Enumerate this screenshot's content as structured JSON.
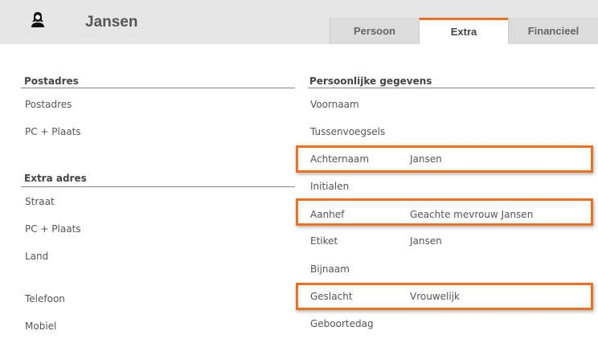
{
  "header": {
    "title": "Jansen",
    "icon": "person-icon"
  },
  "tabs": [
    {
      "label": "Persoon"
    },
    {
      "label": "Extra",
      "active": true
    },
    {
      "label": "Financieel"
    }
  ],
  "left": {
    "postadres": {
      "heading": "Postadres",
      "rows": [
        "Postadres",
        "PC + Plaats"
      ]
    },
    "extra": {
      "heading": "Extra adres",
      "rows": [
        "Straat",
        "PC + Plaats",
        "Land"
      ]
    },
    "contact": [
      "Telefoon",
      "Mobiel"
    ]
  },
  "right": {
    "heading": "Persoonlijke gegevens",
    "rows": [
      {
        "label": "Voornaam",
        "value": ""
      },
      {
        "label": "Tussenvoegsels",
        "value": ""
      },
      {
        "label": "Achternaam",
        "value": "Jansen",
        "highlighted": true
      },
      {
        "label": "Initialen",
        "value": ""
      },
      {
        "label": "Aanhef",
        "value": "Geachte mevrouw Jansen",
        "highlighted": true
      },
      {
        "label": "Etiket",
        "value": "Jansen"
      },
      {
        "label": "Bijnaam",
        "value": ""
      },
      {
        "label": "Geslacht",
        "value": "Vrouwelijk",
        "highlighted": true
      },
      {
        "label": "Geboortedag",
        "value": ""
      }
    ]
  },
  "colors": {
    "accent": "#f07022",
    "header_bg": "#e6e6e6"
  }
}
